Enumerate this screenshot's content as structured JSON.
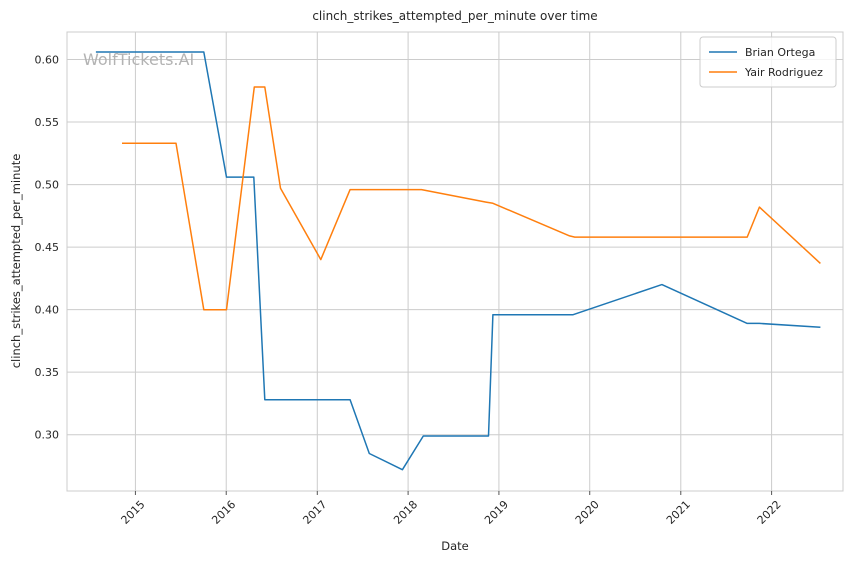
{
  "chart_data": {
    "type": "line",
    "title": "clinch_strikes_attempted_per_minute over time",
    "xlabel": "Date",
    "ylabel": "clinch_strikes_attempted_per_minute",
    "watermark": "WolfTickets.AI",
    "xlim": [
      "2014-04-01",
      "2022-10-15"
    ],
    "ylim": [
      0.255,
      0.622
    ],
    "x_ticks": [
      "2015",
      "2016",
      "2017",
      "2018",
      "2019",
      "2020",
      "2021",
      "2022"
    ],
    "y_ticks": [
      0.3,
      0.35,
      0.4,
      0.45,
      0.5,
      0.55,
      0.6
    ],
    "grid": true,
    "legend_position": "top-right",
    "series": [
      {
        "name": "Brian Ortega",
        "color": "#1f77b4",
        "points": [
          [
            "2014-07-26",
            0.606
          ],
          [
            "2015-10-03",
            0.606
          ],
          [
            "2016-01-02",
            0.506
          ],
          [
            "2016-04-21",
            0.506
          ],
          [
            "2016-06-04",
            0.328
          ],
          [
            "2017-05-13",
            0.328
          ],
          [
            "2017-07-29",
            0.285
          ],
          [
            "2017-12-09",
            0.272
          ],
          [
            "2018-03-03",
            0.299
          ],
          [
            "2018-11-20",
            0.299
          ],
          [
            "2018-12-08",
            0.396
          ],
          [
            "2019-10-26",
            0.396
          ],
          [
            "2020-10-17",
            0.42
          ],
          [
            "2021-09-25",
            0.389
          ],
          [
            "2021-11-13",
            0.389
          ],
          [
            "2022-07-16",
            0.386
          ]
        ]
      },
      {
        "name": "Yair Rodriguez",
        "color": "#ff7f0e",
        "points": [
          [
            "2014-11-08",
            0.533
          ],
          [
            "2015-06-13",
            0.533
          ],
          [
            "2015-10-03",
            0.4
          ],
          [
            "2016-01-02",
            0.4
          ],
          [
            "2016-04-23",
            0.578
          ],
          [
            "2016-06-04",
            0.578
          ],
          [
            "2016-08-06",
            0.497
          ],
          [
            "2017-01-15",
            0.44
          ],
          [
            "2017-05-13",
            0.496
          ],
          [
            "2018-02-24",
            0.496
          ],
          [
            "2018-11-10",
            0.486
          ],
          [
            "2018-12-08",
            0.485
          ],
          [
            "2019-10-12",
            0.459
          ],
          [
            "2019-11-02",
            0.458
          ],
          [
            "2021-09-25",
            0.458
          ],
          [
            "2021-11-13",
            0.482
          ],
          [
            "2022-07-16",
            0.437
          ]
        ]
      }
    ]
  }
}
